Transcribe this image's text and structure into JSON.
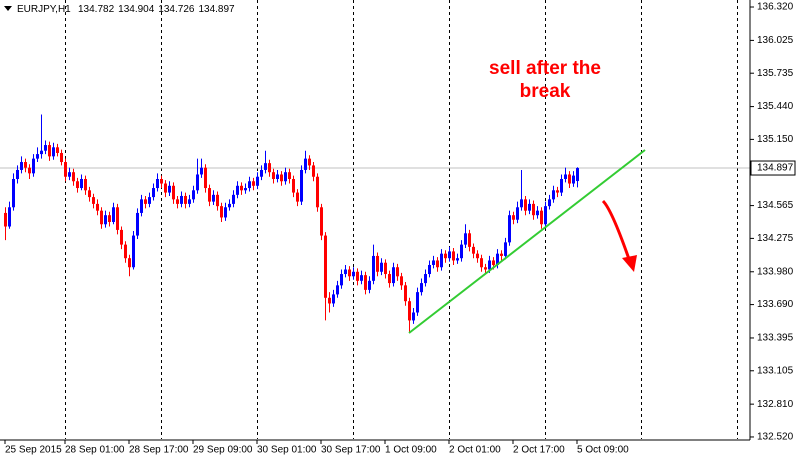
{
  "chart_data": {
    "type": "candlestick",
    "symbol": "EURJPY,H1",
    "open": 134.782,
    "high": 134.904,
    "low": 134.726,
    "close": 134.897,
    "current_price": 134.897,
    "annotation": [
      "sell after the",
      "break"
    ],
    "up_color": "#0000ff",
    "down_color": "#ff0000",
    "trendline_color": "#33cc33",
    "arrow_color": "#ff0000",
    "ylim": [
      132.502,
      136.382
    ],
    "yticks": [
      {
        "value": 136.32,
        "label": "136.320"
      },
      136.025,
      135.735,
      {
        "value": 135.44,
        "label": "135.440"
      },
      {
        "value": 135.15,
        "label": "135.150"
      },
      134.565,
      134.275,
      {
        "value": 133.98,
        "label": "133.980"
      },
      {
        "value": 133.69,
        "label": "133.690"
      },
      133.395,
      133.105,
      {
        "value": 132.81,
        "label": "132.810"
      },
      {
        "value": 132.52,
        "label": "132.520"
      }
    ],
    "categories": [
      "25 Sep 2015",
      null,
      null,
      null,
      null,
      null,
      null,
      null,
      null,
      null,
      null,
      null,
      null,
      null,
      null,
      "28 Sep 01:00",
      null,
      null,
      null,
      null,
      null,
      null,
      null,
      null,
      null,
      null,
      null,
      null,
      null,
      null,
      null,
      "28 Sep 17:00",
      null,
      null,
      null,
      null,
      null,
      null,
      null,
      null,
      null,
      null,
      null,
      null,
      null,
      null,
      null,
      "29 Sep 09:00",
      null,
      null,
      null,
      null,
      null,
      null,
      null,
      null,
      null,
      null,
      null,
      null,
      null,
      null,
      null,
      "30 Sep 01:00",
      null,
      null,
      null,
      null,
      null,
      null,
      null,
      null,
      null,
      null,
      null,
      null,
      null,
      null,
      null,
      "30 Sep 17:00",
      null,
      null,
      null,
      null,
      null,
      null,
      null,
      null,
      null,
      null,
      null,
      null,
      null,
      null,
      null,
      "1 Oct 09:00",
      null,
      null,
      null,
      null,
      null,
      null,
      null,
      null,
      null,
      null,
      null,
      null,
      null,
      null,
      null,
      "2 Oct 01:00",
      null,
      null,
      null,
      null,
      null,
      null,
      null,
      null,
      null,
      null,
      null,
      null,
      null,
      null,
      null,
      "2 Oct 17:00",
      null,
      null,
      null,
      null,
      null,
      null,
      null,
      null,
      null,
      null,
      null,
      null,
      null,
      null,
      null,
      "5 Oct 09:00"
    ],
    "ohlc": [
      [
        134.5,
        134.55,
        134.26,
        134.38
      ],
      [
        134.38,
        134.6,
        134.36,
        134.55
      ],
      [
        134.55,
        134.85,
        134.52,
        134.8
      ],
      [
        134.8,
        134.92,
        134.76,
        134.88
      ],
      [
        134.88,
        135.0,
        134.85,
        134.95
      ],
      [
        134.95,
        134.98,
        134.86,
        134.9
      ],
      [
        134.9,
        134.93,
        134.8,
        134.85
      ],
      [
        134.85,
        135.02,
        134.82,
        134.98
      ],
      [
        134.98,
        135.08,
        134.95,
        135.02
      ],
      [
        135.02,
        135.37,
        134.98,
        135.05
      ],
      [
        135.05,
        135.14,
        135.02,
        135.1
      ],
      [
        135.1,
        135.13,
        134.96,
        135.0
      ],
      [
        135.0,
        135.12,
        134.97,
        135.08
      ],
      [
        135.08,
        135.11,
        135.0,
        135.03
      ],
      [
        135.03,
        135.06,
        134.92,
        134.95
      ],
      [
        134.95,
        134.98,
        134.78,
        134.82
      ],
      [
        134.82,
        134.9,
        134.79,
        134.86
      ],
      [
        134.86,
        134.89,
        134.74,
        134.78
      ],
      [
        134.78,
        134.81,
        134.68,
        134.72
      ],
      [
        134.72,
        134.84,
        134.7,
        134.8
      ],
      [
        134.8,
        134.83,
        134.66,
        134.7
      ],
      [
        134.7,
        134.73,
        134.6,
        134.64
      ],
      [
        134.64,
        134.67,
        134.54,
        134.58
      ],
      [
        134.58,
        134.62,
        134.48,
        134.52
      ],
      [
        134.52,
        134.55,
        134.36,
        134.4
      ],
      [
        134.4,
        134.52,
        134.37,
        134.48
      ],
      [
        134.48,
        134.51,
        134.38,
        134.42
      ],
      [
        134.42,
        134.59,
        134.4,
        134.55
      ],
      [
        134.55,
        134.58,
        134.31,
        134.35
      ],
      [
        134.35,
        134.38,
        134.18,
        134.22
      ],
      [
        134.22,
        134.25,
        134.06,
        134.1
      ],
      [
        134.1,
        134.13,
        133.94,
        134.02
      ],
      [
        134.02,
        134.34,
        134.0,
        134.3
      ],
      [
        134.3,
        134.54,
        134.27,
        134.5
      ],
      [
        134.5,
        134.66,
        134.47,
        134.62
      ],
      [
        134.62,
        134.65,
        134.54,
        134.58
      ],
      [
        134.58,
        134.68,
        134.55,
        134.64
      ],
      [
        134.64,
        134.76,
        134.61,
        134.72
      ],
      [
        134.72,
        134.85,
        134.69,
        134.8
      ],
      [
        134.8,
        134.83,
        134.72,
        134.76
      ],
      [
        134.76,
        134.79,
        134.64,
        134.68
      ],
      [
        134.68,
        134.78,
        134.65,
        134.74
      ],
      [
        134.74,
        134.77,
        134.58,
        134.62
      ],
      [
        134.62,
        134.65,
        134.54,
        134.58
      ],
      [
        134.58,
        134.69,
        134.55,
        134.65
      ],
      [
        134.65,
        134.68,
        134.54,
        134.58
      ],
      [
        134.58,
        134.66,
        134.55,
        134.62
      ],
      [
        134.62,
        134.74,
        134.59,
        134.7
      ],
      [
        134.7,
        134.98,
        134.67,
        134.84
      ],
      [
        134.84,
        134.98,
        134.81,
        134.9
      ],
      [
        134.9,
        134.93,
        134.68,
        134.72
      ],
      [
        134.72,
        134.75,
        134.56,
        134.6
      ],
      [
        134.6,
        134.7,
        134.57,
        134.66
      ],
      [
        134.66,
        134.69,
        134.52,
        134.56
      ],
      [
        134.56,
        134.59,
        134.42,
        134.46
      ],
      [
        134.46,
        134.59,
        134.43,
        134.55
      ],
      [
        134.55,
        134.62,
        134.52,
        134.58
      ],
      [
        134.58,
        134.7,
        134.55,
        134.66
      ],
      [
        134.66,
        134.78,
        134.63,
        134.74
      ],
      [
        134.74,
        134.77,
        134.66,
        134.7
      ],
      [
        134.7,
        134.76,
        134.67,
        134.72
      ],
      [
        134.72,
        134.82,
        134.69,
        134.78
      ],
      [
        134.78,
        134.81,
        134.7,
        134.74
      ],
      [
        134.74,
        134.86,
        134.71,
        134.82
      ],
      [
        134.82,
        134.92,
        134.79,
        134.88
      ],
      [
        134.88,
        135.05,
        134.85,
        134.94
      ],
      [
        134.94,
        134.97,
        134.82,
        134.86
      ],
      [
        134.86,
        134.89,
        134.76,
        134.8
      ],
      [
        134.8,
        134.88,
        134.77,
        134.84
      ],
      [
        134.84,
        134.87,
        134.74,
        134.78
      ],
      [
        134.78,
        134.9,
        134.75,
        134.86
      ],
      [
        134.86,
        134.89,
        134.76,
        134.8
      ],
      [
        134.8,
        134.83,
        134.64,
        134.68
      ],
      [
        134.68,
        134.71,
        134.56,
        134.6
      ],
      [
        134.6,
        134.92,
        134.57,
        134.88
      ],
      [
        134.88,
        135.05,
        134.85,
        134.98
      ],
      [
        134.98,
        135.01,
        134.88,
        134.92
      ],
      [
        134.92,
        134.95,
        134.78,
        134.82
      ],
      [
        134.82,
        134.85,
        134.51,
        134.55
      ],
      [
        134.55,
        134.58,
        134.26,
        134.3
      ],
      [
        134.3,
        134.33,
        133.55,
        133.75
      ],
      [
        133.75,
        133.8,
        133.62,
        133.7
      ],
      [
        133.7,
        133.82,
        133.67,
        133.78
      ],
      [
        133.78,
        133.9,
        133.75,
        133.86
      ],
      [
        133.86,
        134.0,
        133.83,
        133.96
      ],
      [
        133.96,
        134.04,
        133.93,
        134.0
      ],
      [
        134.0,
        134.03,
        133.9,
        133.94
      ],
      [
        133.94,
        134.02,
        133.91,
        133.98
      ],
      [
        133.98,
        134.01,
        133.86,
        133.9
      ],
      [
        133.9,
        133.99,
        133.87,
        133.95
      ],
      [
        133.95,
        133.98,
        133.78,
        133.82
      ],
      [
        133.82,
        133.94,
        133.79,
        133.9
      ],
      [
        133.9,
        134.22,
        133.87,
        134.12
      ],
      [
        134.12,
        134.15,
        133.94,
        133.98
      ],
      [
        133.98,
        134.1,
        133.95,
        134.06
      ],
      [
        134.06,
        134.09,
        133.92,
        133.96
      ],
      [
        133.96,
        133.99,
        133.84,
        133.88
      ],
      [
        133.88,
        134.06,
        133.85,
        134.02
      ],
      [
        134.02,
        134.05,
        133.9,
        133.94
      ],
      [
        133.94,
        133.97,
        133.82,
        133.86
      ],
      [
        133.86,
        133.89,
        133.68,
        133.72
      ],
      [
        133.72,
        133.75,
        133.44,
        133.55
      ],
      [
        133.55,
        133.66,
        133.52,
        133.62
      ],
      [
        133.62,
        133.84,
        133.59,
        133.8
      ],
      [
        133.8,
        133.92,
        133.77,
        133.88
      ],
      [
        133.88,
        134.0,
        133.85,
        133.96
      ],
      [
        133.96,
        134.08,
        133.93,
        134.04
      ],
      [
        134.04,
        134.12,
        134.01,
        134.08
      ],
      [
        134.08,
        134.11,
        133.98,
        134.02
      ],
      [
        134.02,
        134.18,
        133.99,
        134.14
      ],
      [
        134.14,
        134.17,
        134.06,
        134.1
      ],
      [
        134.1,
        134.2,
        134.07,
        134.16
      ],
      [
        134.16,
        134.19,
        134.04,
        134.08
      ],
      [
        134.08,
        134.14,
        134.05,
        134.1
      ],
      [
        134.1,
        134.26,
        134.07,
        134.22
      ],
      [
        134.22,
        134.4,
        134.19,
        134.32
      ],
      [
        134.32,
        134.35,
        134.16,
        134.2
      ],
      [
        134.2,
        134.23,
        134.1,
        134.14
      ],
      [
        134.14,
        134.17,
        134.06,
        134.1
      ],
      [
        134.1,
        134.13,
        133.98,
        134.02
      ],
      [
        134.02,
        134.05,
        133.96,
        134.0
      ],
      [
        134.0,
        134.12,
        133.97,
        134.08
      ],
      [
        134.08,
        134.11,
        134.0,
        134.04
      ],
      [
        134.04,
        134.18,
        134.01,
        134.14
      ],
      [
        134.14,
        134.17,
        134.08,
        134.12
      ],
      [
        134.12,
        134.28,
        134.09,
        134.24
      ],
      [
        134.24,
        134.52,
        134.21,
        134.48
      ],
      [
        134.48,
        134.51,
        134.4,
        134.44
      ],
      [
        134.44,
        134.6,
        134.41,
        134.55
      ],
      [
        134.55,
        134.88,
        134.52,
        134.62
      ],
      [
        134.62,
        134.65,
        134.48,
        134.52
      ],
      [
        134.52,
        134.62,
        134.49,
        134.58
      ],
      [
        134.58,
        134.61,
        134.44,
        134.48
      ],
      [
        134.48,
        134.56,
        134.45,
        134.52
      ],
      [
        134.52,
        134.55,
        134.36,
        134.4
      ],
      [
        134.4,
        134.6,
        134.37,
        134.56
      ],
      [
        134.56,
        134.66,
        134.53,
        134.62
      ],
      [
        134.62,
        134.74,
        134.59,
        134.7
      ],
      [
        134.7,
        134.73,
        134.64,
        134.68
      ],
      [
        134.68,
        134.84,
        134.65,
        134.8
      ],
      [
        134.8,
        134.9,
        134.77,
        134.84
      ],
      [
        134.84,
        134.87,
        134.72,
        134.76
      ],
      [
        134.76,
        134.87,
        134.73,
        134.83
      ],
      [
        134.782,
        134.904,
        134.726,
        134.897
      ]
    ]
  }
}
